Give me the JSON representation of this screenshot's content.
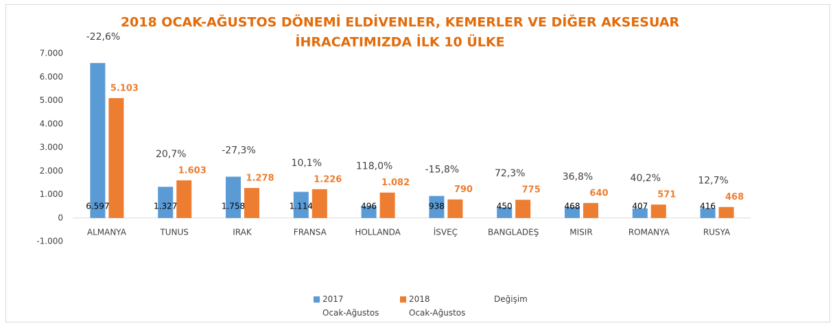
{
  "chart_data": {
    "type": "bar",
    "title": [
      "2018 OCAK-AĞUSTOS DÖNEMİ ELDİVENLER, KEMERLER VE DİĞER AKSESUAR",
      "İHRACATIMIZDA İLK  10 ÜLKE"
    ],
    "categories": [
      "ALMANYA",
      "TUNUS",
      "IRAK",
      "FRANSA",
      "HOLLANDA",
      "İSVEÇ",
      "BANGLADEŞ",
      "MISIR",
      "ROMANYA",
      "RUSYA"
    ],
    "series": [
      {
        "name": "2017\nOcak-Ağustos",
        "color": "#5b9bd5",
        "values": [
          6597,
          1327,
          1758,
          1114,
          496,
          938,
          450,
          468,
          407,
          416
        ],
        "value_labels": [
          "6.597",
          "1.327",
          "1.758",
          "1.114",
          "496",
          "938",
          "450",
          "468",
          "407",
          "416"
        ]
      },
      {
        "name": "2018\nOcak-Ağustos",
        "color": "#ed7d31",
        "values": [
          5103,
          1603,
          1278,
          1226,
          1082,
          790,
          775,
          640,
          571,
          468
        ],
        "value_labels": [
          "5.103",
          "1.603",
          "1.278",
          "1.226",
          "1.082",
          "790",
          "775",
          "640",
          "571",
          "468"
        ]
      },
      {
        "name": "Değişim",
        "values": [
          -22.6,
          20.7,
          -27.3,
          10.1,
          118.0,
          -15.8,
          72.3,
          36.8,
          40.2,
          12.7
        ],
        "value_labels": [
          "-22,6%",
          "20,7%",
          "-27,3%",
          "10,1%",
          "118,0%",
          "-15,8%",
          "72,3%",
          "36,8%",
          "40,2%",
          "12,7%"
        ]
      }
    ],
    "ylim": [
      -1000,
      7000
    ],
    "yticks": [
      {
        "value": -1000,
        "label": "-1.000"
      },
      0,
      {
        "value": 1000,
        "label": "1.000"
      },
      {
        "value": 2000,
        "label": "2.000"
      },
      {
        "value": 3000,
        "label": "3.000"
      },
      {
        "value": 4000,
        "label": "4.000"
      },
      {
        "value": 5000,
        "label": "5.000"
      },
      {
        "value": 6000,
        "label": "6.000"
      },
      {
        "value": 7000,
        "label": "7.000"
      }
    ],
    "grid": false
  }
}
